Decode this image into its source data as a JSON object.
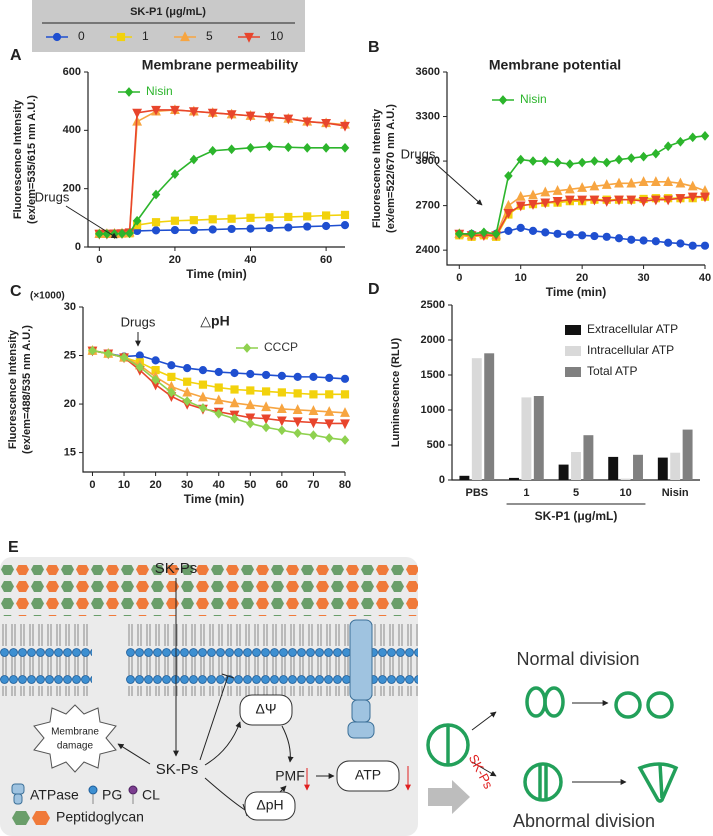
{
  "legend_title": "SK-P1 (μg/mL)",
  "chart_data": [
    {
      "type": "line",
      "panel": "A",
      "title": "Membrane permeability",
      "xlabel": "Time (min)",
      "ylabel": [
        "Fluorescence Intensity",
        "(ex/em=535/615 nm A.U.)"
      ],
      "annotation": "Drugs",
      "x": [
        0,
        2,
        4,
        6,
        8,
        10,
        15,
        20,
        25,
        30,
        35,
        40,
        45,
        50,
        55,
        60,
        65
      ],
      "xlim": [
        -3,
        65
      ],
      "xticks": [
        0,
        20,
        40,
        60
      ],
      "ylim": [
        0,
        600
      ],
      "yticks": [
        0,
        200,
        400,
        600
      ],
      "series": [
        {
          "name": "0",
          "color": "#1f4fd0",
          "marker": "circle",
          "values": [
            45,
            45,
            45,
            46,
            47,
            55,
            57,
            58,
            58,
            60,
            62,
            63,
            65,
            67,
            70,
            72,
            75
          ]
        },
        {
          "name": "1",
          "color": "#f2d20c",
          "marker": "square",
          "values": [
            45,
            45,
            45,
            46,
            47,
            75,
            85,
            90,
            92,
            95,
            97,
            100,
            102,
            103,
            105,
            108,
            110
          ]
        },
        {
          "name": "5",
          "color": "#f7a541",
          "marker": "triangle-up",
          "values": [
            45,
            45,
            46,
            47,
            50,
            430,
            465,
            470,
            465,
            460,
            455,
            450,
            445,
            440,
            430,
            425,
            420
          ]
        },
        {
          "name": "10",
          "color": "#e8452c",
          "marker": "triangle-down",
          "values": [
            45,
            45,
            46,
            47,
            50,
            460,
            470,
            470,
            465,
            460,
            455,
            450,
            445,
            440,
            430,
            425,
            415
          ]
        },
        {
          "name": "Nisin",
          "color": "#2cb52c",
          "marker": "diamond",
          "values": [
            45,
            45,
            45,
            46,
            47,
            90,
            180,
            250,
            300,
            330,
            335,
            340,
            345,
            342,
            340,
            340,
            340
          ]
        }
      ]
    },
    {
      "type": "line",
      "panel": "B",
      "title": "Membrane potential",
      "xlabel": "Time (min)",
      "ylabel": [
        "Fluorescence Intensity",
        "(ex/em=522/670 nm A.U.)"
      ],
      "annotation": "Drugs",
      "x": [
        0,
        2,
        4,
        6,
        8,
        10,
        12,
        14,
        16,
        18,
        20,
        22,
        24,
        26,
        28,
        30,
        32,
        34,
        36,
        38,
        40
      ],
      "xlim": [
        -2,
        40
      ],
      "xticks": [
        0,
        10,
        20,
        30,
        40
      ],
      "ylim": [
        2300,
        3600
      ],
      "yticks": [
        2400,
        2700,
        3000,
        3300,
        3600
      ],
      "series": [
        {
          "color": "#1f4fd0",
          "marker": "circle",
          "values": [
            2510,
            2510,
            2510,
            2510,
            2530,
            2550,
            2530,
            2520,
            2510,
            2505,
            2500,
            2495,
            2490,
            2480,
            2470,
            2465,
            2460,
            2450,
            2445,
            2430,
            2430
          ]
        },
        {
          "color": "#f2d20c",
          "marker": "square",
          "values": [
            2500,
            2490,
            2500,
            2490,
            2640,
            2700,
            2710,
            2720,
            2720,
            2730,
            2730,
            2740,
            2740,
            2740,
            2740,
            2745,
            2750,
            2750,
            2750,
            2750,
            2760
          ]
        },
        {
          "color": "#f7a541",
          "marker": "triangle-up",
          "values": [
            2510,
            2500,
            2510,
            2500,
            2700,
            2760,
            2770,
            2790,
            2800,
            2810,
            2820,
            2830,
            2840,
            2850,
            2850,
            2860,
            2860,
            2860,
            2850,
            2830,
            2800
          ]
        },
        {
          "color": "#e8452c",
          "marker": "triangle-down",
          "values": [
            2510,
            2500,
            2500,
            2500,
            2650,
            2700,
            2710,
            2720,
            2730,
            2740,
            2740,
            2740,
            2730,
            2740,
            2740,
            2730,
            2740,
            2740,
            2750,
            2760,
            2760
          ]
        },
        {
          "name": "Nisin",
          "color": "#2cb52c",
          "marker": "diamond",
          "values": [
            2510,
            2510,
            2520,
            2510,
            2900,
            3010,
            3000,
            3000,
            2990,
            2980,
            2990,
            3000,
            2990,
            3010,
            3020,
            3030,
            3050,
            3100,
            3130,
            3160,
            3170
          ]
        }
      ]
    },
    {
      "type": "line",
      "panel": "C",
      "title": "△pH",
      "xlabel": "Time (min)",
      "scale_note": "(×1000)",
      "ylabel": [
        "Fluorescence Intensity",
        "(ex/em=488/535 nm A.U.)"
      ],
      "annotation": "Drugs",
      "x": [
        0,
        5,
        10,
        15,
        20,
        25,
        30,
        35,
        40,
        45,
        50,
        55,
        60,
        65,
        70,
        75,
        80
      ],
      "xlim": [
        -3,
        80
      ],
      "xticks": [
        0,
        10,
        20,
        30,
        40,
        50,
        60,
        70,
        80
      ],
      "ylim": [
        13,
        30
      ],
      "yticks": [
        15,
        20,
        25,
        30
      ],
      "series": [
        {
          "color": "#1f4fd0",
          "marker": "circle",
          "values": [
            25.5,
            25.2,
            24.9,
            25.0,
            24.5,
            24.0,
            23.7,
            23.5,
            23.3,
            23.2,
            23.1,
            23.0,
            22.9,
            22.8,
            22.8,
            22.7,
            22.6
          ]
        },
        {
          "color": "#f2d20c",
          "marker": "square",
          "values": [
            25.5,
            25.2,
            24.8,
            24.3,
            23.5,
            22.8,
            22.3,
            22.0,
            21.7,
            21.5,
            21.4,
            21.3,
            21.2,
            21.1,
            21.0,
            21.0,
            21.0
          ]
        },
        {
          "color": "#f7a541",
          "marker": "triangle-up",
          "values": [
            25.5,
            25.2,
            24.8,
            24.0,
            22.8,
            21.8,
            21.2,
            20.7,
            20.4,
            20.1,
            19.9,
            19.7,
            19.5,
            19.4,
            19.3,
            19.2,
            19.1
          ]
        },
        {
          "color": "#e8452c",
          "marker": "triangle-down",
          "values": [
            25.5,
            25.2,
            24.8,
            23.5,
            22.0,
            20.8,
            20.0,
            19.5,
            19.2,
            18.9,
            18.6,
            18.5,
            18.3,
            18.2,
            18.1,
            18.0,
            18.0
          ]
        },
        {
          "name": "CCCP",
          "color": "#8fd14f",
          "marker": "diamond",
          "values": [
            25.5,
            25.2,
            24.8,
            23.8,
            22.5,
            21.2,
            20.3,
            19.6,
            19.0,
            18.5,
            18.0,
            17.6,
            17.3,
            17.0,
            16.8,
            16.5,
            16.3
          ]
        }
      ]
    },
    {
      "type": "bar",
      "panel": "D",
      "ylabel": [
        "Luminescence (RLU)"
      ],
      "group_label": "SK-P1 (μg/mL)",
      "categories": [
        "PBS",
        "1",
        "5",
        "10",
        "Nisin"
      ],
      "ylim": [
        0,
        2500
      ],
      "yticks": [
        0,
        500,
        1000,
        1500,
        2000,
        2500
      ],
      "series": [
        {
          "name": "Extracellular ATP",
          "color": "#111111",
          "values": [
            60,
            30,
            220,
            330,
            320
          ]
        },
        {
          "name": "Intracellular ATP",
          "color": "#d9d9d9",
          "values": [
            1740,
            1180,
            400,
            20,
            390
          ]
        },
        {
          "name": "Total ATP",
          "color": "#808080",
          "values": [
            1810,
            1200,
            640,
            360,
            720
          ]
        }
      ]
    }
  ],
  "diagram": {
    "panel": "E",
    "top_agent": "SK-Ps",
    "damage": [
      "Membrane",
      "damage"
    ],
    "agent": "SK-Ps",
    "delta_psi": "ΔΨ",
    "pmf": "PMF",
    "atp": "ATP",
    "delta_ph": "ΔpH",
    "legend": {
      "atpase": "ATPase",
      "pg": "PG",
      "cl": "CL",
      "peptidoglycan": "Peptidoglycan"
    },
    "division": {
      "normal": "Normal division",
      "abnormal": "Abnormal division",
      "agent": "SK-Ps"
    }
  }
}
